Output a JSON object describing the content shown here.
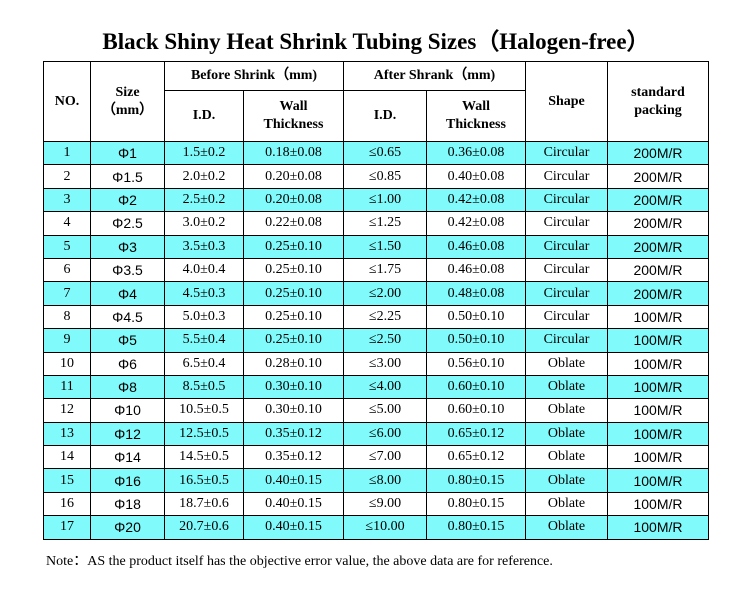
{
  "title": "Black Shiny Heat Shrink Tubing Sizes（Halogen-free）",
  "header": {
    "no": "NO.",
    "size": [
      "Size",
      "（mm）"
    ],
    "before_shrink": "Before Shrink（mm)",
    "after_shrink": "After Shrank（mm)",
    "shape": "Shape",
    "packing": [
      "standard",
      "packing"
    ],
    "id_before": "I.D.",
    "wall_before": [
      "Wall",
      "Thickness"
    ],
    "id_after": "I.D.",
    "wall_after": [
      "Wall",
      "Thickness"
    ]
  },
  "rows": [
    [
      "1",
      "Φ1",
      "1.5±0.2",
      "0.18±0.08",
      "≤0.65",
      "0.36±0.08",
      "Circular",
      "200M/R"
    ],
    [
      "2",
      "Φ1.5",
      "2.0±0.2",
      "0.20±0.08",
      "≤0.85",
      "0.40±0.08",
      "Circular",
      "200M/R"
    ],
    [
      "3",
      "Φ2",
      "2.5±0.2",
      "0.20±0.08",
      "≤1.00",
      "0.42±0.08",
      "Circular",
      "200M/R"
    ],
    [
      "4",
      "Φ2.5",
      "3.0±0.2",
      "0.22±0.08",
      "≤1.25",
      "0.42±0.08",
      "Circular",
      "200M/R"
    ],
    [
      "5",
      "Φ3",
      "3.5±0.3",
      "0.25±0.10",
      "≤1.50",
      "0.46±0.08",
      "Circular",
      "200M/R"
    ],
    [
      "6",
      "Φ3.5",
      "4.0±0.4",
      "0.25±0.10",
      "≤1.75",
      "0.46±0.08",
      "Circular",
      "200M/R"
    ],
    [
      "7",
      "Φ4",
      "4.5±0.3",
      "0.25±0.10",
      "≤2.00",
      "0.48±0.08",
      "Circular",
      "200M/R"
    ],
    [
      "8",
      "Φ4.5",
      "5.0±0.3",
      "0.25±0.10",
      "≤2.25",
      "0.50±0.10",
      "Circular",
      "100M/R"
    ],
    [
      "9",
      "Φ5",
      "5.5±0.4",
      "0.25±0.10",
      "≤2.50",
      "0.50±0.10",
      "Circular",
      "100M/R"
    ],
    [
      "10",
      "Φ6",
      "6.5±0.4",
      "0.28±0.10",
      "≤3.00",
      "0.56±0.10",
      "Oblate",
      "100M/R"
    ],
    [
      "11",
      "Φ8",
      "8.5±0.5",
      "0.30±0.10",
      "≤4.00",
      "0.60±0.10",
      "Oblate",
      "100M/R"
    ],
    [
      "12",
      "Φ10",
      "10.5±0.5",
      "0.30±0.10",
      "≤5.00",
      "0.60±0.10",
      "Oblate",
      "100M/R"
    ],
    [
      "13",
      "Φ12",
      "12.5±0.5",
      "0.35±0.12",
      "≤6.00",
      "0.65±0.12",
      "Oblate",
      "100M/R"
    ],
    [
      "14",
      "Φ14",
      "14.5±0.5",
      "0.35±0.12",
      "≤7.00",
      "0.65±0.12",
      "Oblate",
      "100M/R"
    ],
    [
      "15",
      "Φ16",
      "16.5±0.5",
      "0.40±0.15",
      "≤8.00",
      "0.80±0.15",
      "Oblate",
      "100M/R"
    ],
    [
      "16",
      "Φ18",
      "18.7±0.6",
      "0.40±0.15",
      "≤9.00",
      "0.80±0.15",
      "Oblate",
      "100M/R"
    ],
    [
      "17",
      "Φ20",
      "20.7±0.6",
      "0.40±0.15",
      "≤10.00",
      "0.80±0.15",
      "Oblate",
      "100M/R"
    ]
  ],
  "note": "Note：AS the product itself  has the objective error value, the above data are for reference."
}
